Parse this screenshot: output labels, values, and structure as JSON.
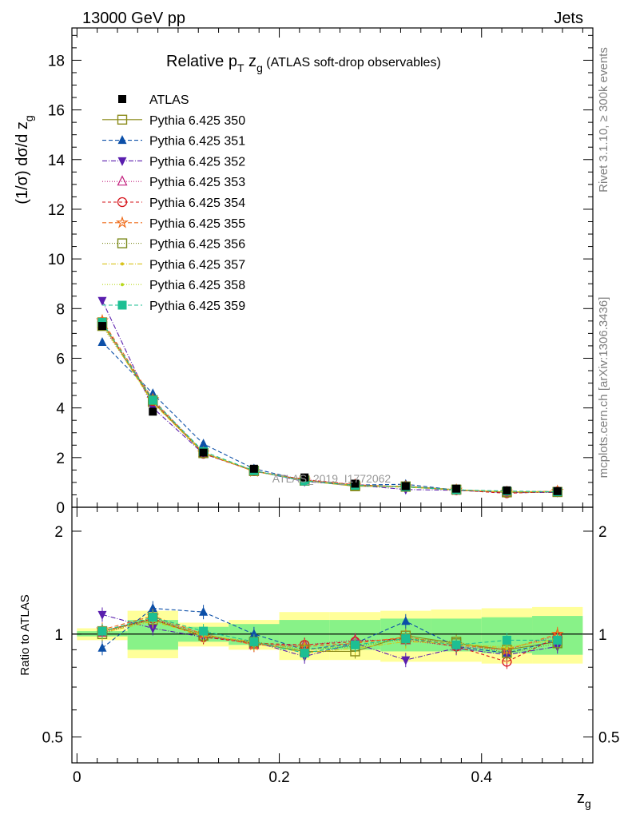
{
  "header": {
    "left": "13000 GeV pp",
    "right": "Jets"
  },
  "side_text": {
    "rivet": "Rivet 3.1.10, ≥ 300k events",
    "mcplots": "mcplots.cern.ch [arXiv:1306.3436]"
  },
  "chart_data": {
    "type": "line",
    "title_parts": [
      "Relative p",
      "T",
      " z",
      "g",
      " (ATLAS soft-drop observables)"
    ],
    "ylabel_parts": [
      "(1/σ) dσ/d z",
      "g"
    ],
    "ratio_ylabel": "Ratio to ATLAS",
    "xlabel_parts": [
      "z",
      "g"
    ],
    "watermark": "ATLAS_2019_I1772062",
    "xlim": [
      -0.005,
      0.51
    ],
    "ylim_main": [
      0,
      19.3
    ],
    "ylim_ratio": [
      0.42,
      2.35
    ],
    "x_ticks": [
      0,
      0.2,
      0.4
    ],
    "x_tick_labels": [
      "0",
      "0.2",
      "0.4"
    ],
    "y_ticks_main": [
      0,
      2,
      4,
      6,
      8,
      10,
      12,
      14,
      16,
      18
    ],
    "y_ticks_ratio": [
      0.5,
      1,
      2
    ],
    "y_tick_labels_ratio": [
      "0.5",
      "1",
      "2"
    ],
    "x": [
      0.025,
      0.075,
      0.125,
      0.175,
      0.225,
      0.275,
      0.325,
      0.375,
      0.425,
      0.475
    ],
    "bin_edges": [
      0,
      0.05,
      0.1,
      0.15,
      0.2,
      0.25,
      0.3,
      0.35,
      0.4,
      0.45,
      0.5
    ],
    "data": {
      "name": "ATLAS",
      "values": [
        7.3,
        3.85,
        2.2,
        1.55,
        1.2,
        0.95,
        0.85,
        0.75,
        0.68,
        0.65
      ]
    },
    "band_inner": [
      [
        0.985,
        1.02
      ],
      [
        0.9,
        1.1
      ],
      [
        0.95,
        1.05
      ],
      [
        0.93,
        1.07
      ],
      [
        0.9,
        1.1
      ],
      [
        0.9,
        1.1
      ],
      [
        0.89,
        1.11
      ],
      [
        0.89,
        1.11
      ],
      [
        0.88,
        1.12
      ],
      [
        0.87,
        1.13
      ]
    ],
    "band_outer": [
      [
        0.96,
        1.04
      ],
      [
        0.85,
        1.17
      ],
      [
        0.92,
        1.08
      ],
      [
        0.9,
        1.1
      ],
      [
        0.84,
        1.16
      ],
      [
        0.84,
        1.16
      ],
      [
        0.83,
        1.17
      ],
      [
        0.83,
        1.18
      ],
      [
        0.82,
        1.19
      ],
      [
        0.82,
        1.2
      ]
    ],
    "series": [
      {
        "name": "Pythia 6.425 350",
        "color": "#8b8b1a",
        "marker": "square-open",
        "dash": "",
        "ratio": [
          1.02,
          1.1,
          0.99,
          0.94,
          0.89,
          0.89,
          0.99,
          0.94,
          0.9,
          0.95
        ]
      },
      {
        "name": "Pythia 6.425 351",
        "color": "#0c4fa8",
        "marker": "triangle-up",
        "dash": "5,3",
        "ratio": [
          0.91,
          1.19,
          1.16,
          1.0,
          0.9,
          0.94,
          1.09,
          0.92,
          0.88,
          0.96
        ]
      },
      {
        "name": "Pythia 6.425 352",
        "color": "#5a1eae",
        "marker": "triangle-down",
        "dash": "6,2,1,2",
        "ratio": [
          1.14,
          1.04,
          0.98,
          0.95,
          0.86,
          0.94,
          0.84,
          0.91,
          0.87,
          0.92
        ]
      },
      {
        "name": "Pythia 6.425 353",
        "color": "#c21e7d",
        "marker": "triangle-open",
        "dash": "1,2",
        "ratio": [
          1.01,
          1.11,
          1.0,
          0.93,
          0.93,
          0.96,
          0.96,
          0.92,
          0.9,
          0.99
        ]
      },
      {
        "name": "Pythia 6.425 354",
        "color": "#d6131a",
        "marker": "circle-open",
        "dash": "4,3",
        "ratio": [
          1.02,
          1.11,
          0.98,
          0.94,
          0.93,
          0.95,
          0.97,
          0.92,
          0.83,
          0.98
        ]
      },
      {
        "name": "Pythia 6.425 355",
        "color": "#ef6c1a",
        "marker": "star-open",
        "dash": "5,3",
        "ratio": [
          1.03,
          1.13,
          1.0,
          0.93,
          0.92,
          0.94,
          0.98,
          0.93,
          0.9,
          1.0
        ]
      },
      {
        "name": "Pythia 6.425 356",
        "color": "#7c8a1c",
        "marker": "square-open",
        "dash": "1,2",
        "ratio": [
          1.0,
          1.12,
          0.99,
          0.95,
          0.9,
          0.92,
          0.97,
          0.95,
          0.88,
          0.94
        ]
      },
      {
        "name": "Pythia 6.425 357",
        "color": "#d8c21a",
        "marker": "dot",
        "dash": "6,2,1,2",
        "ratio": [
          1.01,
          1.09,
          0.99,
          0.95,
          0.88,
          0.91,
          0.95,
          0.94,
          0.91,
          0.97
        ]
      },
      {
        "name": "Pythia 6.425 358",
        "color": "#b8d81c",
        "marker": "dot",
        "dash": "1,2",
        "ratio": [
          1.02,
          1.1,
          1.0,
          0.94,
          0.9,
          0.93,
          0.96,
          0.93,
          0.92,
          0.96
        ]
      },
      {
        "name": "Pythia 6.425 359",
        "color": "#1dbf93",
        "marker": "square",
        "dash": "5,3",
        "ratio": [
          1.02,
          1.12,
          1.02,
          0.95,
          0.88,
          0.93,
          0.97,
          0.93,
          0.96,
          0.96
        ]
      }
    ]
  }
}
